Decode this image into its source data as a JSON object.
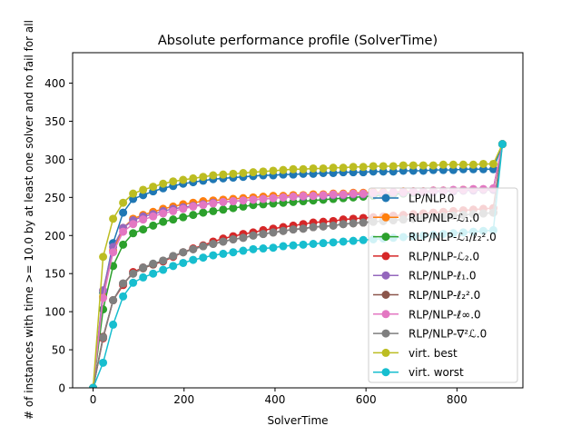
{
  "chart_data": {
    "type": "line",
    "title": "Absolute performance profile (SolverTime)",
    "xlabel": "SolverTime",
    "ylabel": "# of instances with time >= 10.0 by at least one solver and no fail for all",
    "xlim": [
      -45,
      945
    ],
    "ylim": [
      0,
      440
    ],
    "xticks": [
      0,
      200,
      400,
      600,
      800
    ],
    "yticks": [
      0,
      50,
      100,
      150,
      200,
      250,
      300,
      350,
      400
    ],
    "x": [
      0,
      22,
      44,
      66,
      88,
      110,
      132,
      154,
      176,
      198,
      220,
      242,
      264,
      286,
      308,
      330,
      352,
      374,
      396,
      418,
      440,
      462,
      484,
      506,
      528,
      550,
      572,
      594,
      616,
      638,
      660,
      682,
      704,
      726,
      748,
      770,
      792,
      814,
      836,
      858,
      880,
      900
    ],
    "legend_position": "lower-right",
    "series": [
      {
        "name": "LP/NLP.0",
        "color": "#1f77b4",
        "values": [
          0,
          125,
          190,
          230,
          248,
          253,
          258,
          262,
          265,
          268,
          270,
          272,
          274,
          275,
          276,
          277,
          278,
          279,
          279,
          280,
          280,
          281,
          281,
          282,
          282,
          283,
          283,
          283,
          284,
          284,
          284,
          285,
          285,
          285,
          286,
          286,
          286,
          287,
          287,
          287,
          287,
          320
        ]
      },
      {
        "name": "RLP/NLP-ℒ₁.0",
        "color": "#ff7f0e",
        "values": [
          0,
          120,
          180,
          210,
          222,
          227,
          231,
          235,
          238,
          241,
          243,
          245,
          246,
          247,
          248,
          249,
          250,
          251,
          252,
          252,
          253,
          253,
          254,
          254,
          255,
          255,
          256,
          256,
          257,
          257,
          257,
          258,
          258,
          258,
          259,
          259,
          259,
          260,
          260,
          260,
          260,
          320
        ]
      },
      {
        "name": "RLP/NLP-ℒ₁/ℓ₂².0",
        "color": "#2ca02c",
        "values": [
          0,
          103,
          160,
          188,
          203,
          208,
          213,
          218,
          221,
          224,
          227,
          230,
          232,
          234,
          236,
          238,
          240,
          241,
          242,
          243,
          244,
          245,
          246,
          247,
          248,
          249,
          250,
          251,
          252,
          253,
          254,
          255,
          256,
          257,
          258,
          258,
          259,
          259,
          260,
          260,
          261,
          320
        ]
      },
      {
        "name": "RLP/NLP-ℒ₂.0",
        "color": "#d62728",
        "values": [
          0,
          65,
          115,
          135,
          152,
          158,
          162,
          166,
          172,
          178,
          183,
          187,
          192,
          196,
          199,
          202,
          204,
          207,
          209,
          211,
          213,
          215,
          217,
          218,
          219,
          221,
          222,
          223,
          224,
          225,
          226,
          227,
          228,
          229,
          230,
          231,
          232,
          233,
          234,
          235,
          236,
          320
        ]
      },
      {
        "name": "RLP/NLP-ℓ₁.0",
        "color": "#9467bd",
        "values": [
          0,
          128,
          185,
          210,
          220,
          225,
          228,
          232,
          235,
          237,
          239,
          241,
          243,
          244,
          245,
          246,
          247,
          248,
          249,
          250,
          251,
          251,
          252,
          252,
          253,
          253,
          254,
          254,
          255,
          255,
          256,
          256,
          257,
          257,
          257,
          258,
          258,
          259,
          259,
          260,
          260,
          320
        ]
      },
      {
        "name": "RLP/NLP-ℓ₂².0",
        "color": "#8c564b",
        "values": [
          0,
          67,
          115,
          137,
          150,
          157,
          162,
          167,
          173,
          178,
          182,
          186,
          189,
          192,
          195,
          197,
          200,
          202,
          204,
          206,
          208,
          209,
          211,
          212,
          213,
          215,
          216,
          217,
          218,
          219,
          220,
          221,
          222,
          223,
          224,
          225,
          226,
          227,
          228,
          229,
          230,
          320
        ]
      },
      {
        "name": "RLP/NLP-ℓ∞.0",
        "color": "#e377c2",
        "values": [
          0,
          118,
          178,
          205,
          215,
          221,
          225,
          229,
          232,
          235,
          238,
          240,
          242,
          244,
          245,
          246,
          247,
          248,
          249,
          250,
          251,
          252,
          252,
          253,
          254,
          254,
          255,
          255,
          256,
          256,
          257,
          257,
          258,
          258,
          259,
          259,
          260,
          260,
          261,
          261,
          262,
          320
        ]
      },
      {
        "name": "RLP/NLP-∇²ℒ.0",
        "color": "#7f7f7f",
        "values": [
          0,
          66,
          115,
          137,
          150,
          158,
          163,
          167,
          173,
          178,
          182,
          186,
          189,
          192,
          195,
          197,
          200,
          202,
          204,
          206,
          208,
          209,
          211,
          212,
          213,
          215,
          216,
          217,
          218,
          219,
          220,
          221,
          222,
          223,
          224,
          225,
          226,
          227,
          228,
          229,
          230,
          320
        ]
      },
      {
        "name": "virt. best",
        "color": "#bcbd22",
        "values": [
          0,
          172,
          222,
          243,
          255,
          260,
          264,
          268,
          271,
          273,
          275,
          277,
          279,
          280,
          281,
          282,
          283,
          284,
          285,
          286,
          287,
          287,
          288,
          288,
          289,
          289,
          290,
          290,
          291,
          291,
          291,
          292,
          292,
          292,
          292,
          293,
          293,
          293,
          293,
          294,
          294,
          320
        ]
      },
      {
        "name": "virt. worst",
        "color": "#17becf",
        "values": [
          0,
          33,
          83,
          120,
          138,
          145,
          150,
          155,
          160,
          164,
          168,
          171,
          174,
          176,
          178,
          180,
          182,
          183,
          184,
          186,
          187,
          188,
          189,
          190,
          191,
          192,
          193,
          194,
          195,
          196,
          197,
          198,
          199,
          200,
          201,
          202,
          203,
          204,
          205,
          206,
          207,
          320
        ]
      }
    ]
  }
}
